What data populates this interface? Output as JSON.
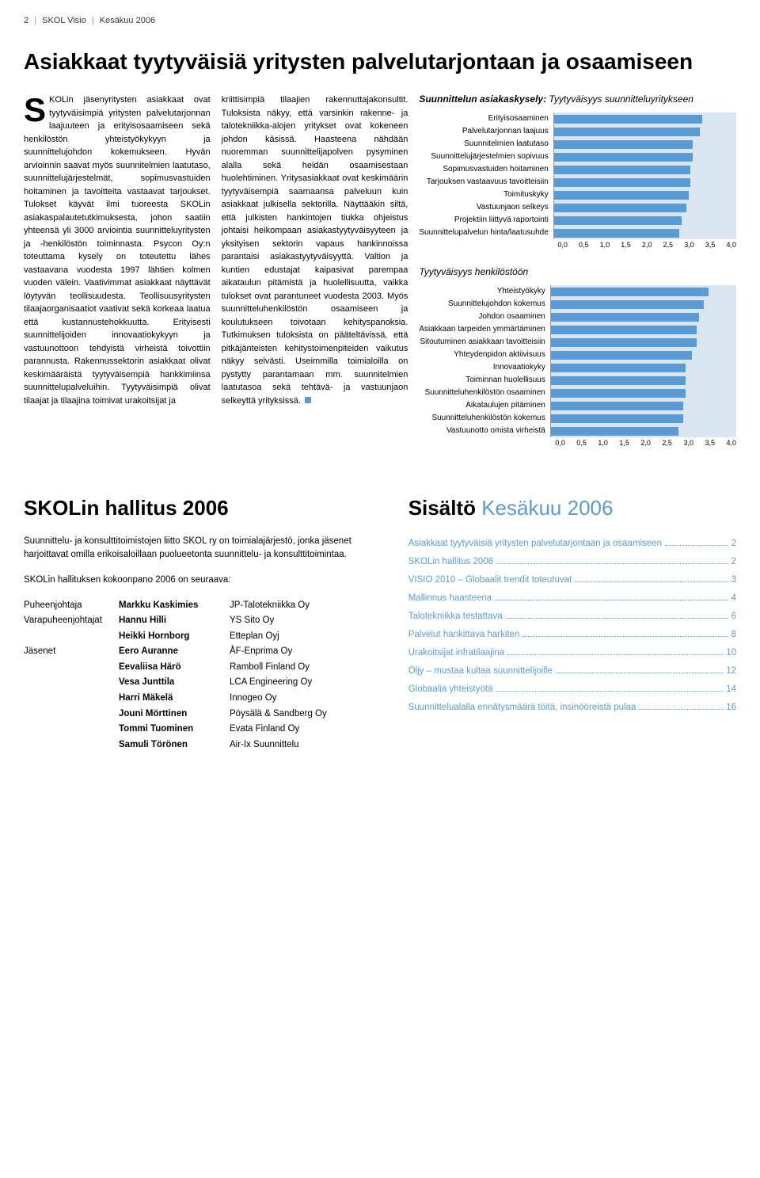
{
  "header": {
    "page_num": "2",
    "mag": "SKOL Visio",
    "issue": "Kesäkuu 2006"
  },
  "article": {
    "title": "Asiakkaat tyytyväisiä yritysten palvelutarjontaan ja osaamiseen",
    "col1": "KOLin jäsenyritysten asiakkaat ovat tyytyväisimpiä yritysten palvelutarjonnan laajuuteen ja erityisosaamiseen sekä henkilöstön yhteistyökykyyn ja suunnittelujohdon kokemukseen. Hyvän arvioinnin saavat myös suunnitelmien laatutaso, suunnittelujärjestelmät, sopimusvastuiden hoitaminen ja tavoitteita vastaavat tarjoukset.\n\nTulokset käyvät ilmi tuoreesta SKOLin asiakaspalautetutkimuksesta, johon saatiin yhteensä yli 3000 arviointia suunnitteluyritysten ja -henkilöstön toiminnasta. Psycon Oy:n toteuttama kysely on toteutettu lähes vastaavana vuodesta 1997 lähtien kolmen vuoden välein.\n\nVaativimmat asiakkaat näyttävät löytyvän teollisuudesta. Teollisuusyritysten tilaajaorganisaatiot vaativat sekä korkeaa laatua että kustannustehokkuutta.\n\nErityisesti suunnittelijoiden innovaatiokykyyn ja vastuunottoon tehdyistä virheistä toivottiin parannusta.\n\nRakennussektorin asiakkaat olivat keskimääräistä tyytyväisempiä hankkimiinsa suunnittelupalveluihin. Tyytyväisimpiä olivat tilaajat ja tilaajina toimivat urakoitsijat ja",
    "col2": "kriittisimpiä tilaajien rakennuttajakonsultit. Tuloksista näkyy, että varsinkin rakenne- ja talotekniikka-alojen yritykset ovat kokeneen johdon käsissä. Haasteena nähdään nuoremman suunnittelijapolven pysyminen alalla sekä heidän osaamisestaan huolehtiminen.\n\nYritysasiakkaat ovat keskimäärin tyytyväisempiä saamaansa palveluun kuin asiakkaat julkisella sektorilla. Näyttääkin siltä, että julkisten hankintojen tiukka ohjeistus johtaisi heikompaan asiakastyytyväisyyteen ja yksityisen sektorin vapaus hankinnoissa parantaisi asiakastyytyväisyyttä.\n\nValtion ja kuntien edustajat kaipasivat parempaa aikataulun pitämistä ja huolellisuutta, vaikka tulokset ovat parantuneet vuodesta 2003. Myös suunnitteluhenkilöstön osaamiseen ja koulutukseen toivotaan kehityspanoksia.\n\nTutkimuksen tuloksista on pääteltävissä, että pitkäjänteisten kehitystoimenpiteiden vaikutus näkyy selvästi. Useimmilla toimialoilla on pystytty parantamaan mm. suunnitelmien laatutasoa sekä tehtävä- ja vastuunjaon selkeyttä yrityksissä."
  },
  "chart1": {
    "title_bold": "Suunnittelun asiakaskysely:",
    "title_ital": "Tyytyväisyys suunnitteluyritykseen",
    "xmax": 4.0,
    "ticks": [
      "0,0",
      "0,5",
      "1,0",
      "1,5",
      "2,0",
      "2,5",
      "3,0",
      "3,5",
      "4,0"
    ],
    "bar_color": "#5b9bd5",
    "bg_color": "#d9e6f2",
    "rows": [
      {
        "label": "Erityisosaaminen",
        "value": 3.25
      },
      {
        "label": "Palvelutarjonnan laajuus",
        "value": 3.2
      },
      {
        "label": "Suunnitelmien laatutaso",
        "value": 3.05
      },
      {
        "label": "Suunnittelujärjestelmien sopivuus",
        "value": 3.05
      },
      {
        "label": "Sopimusvastuiden hoitaminen",
        "value": 3.0
      },
      {
        "label": "Tarjouksen vastaavuus tavoitteisiin",
        "value": 3.0
      },
      {
        "label": "Toimituskyky",
        "value": 2.95
      },
      {
        "label": "Vastuunjaon selkeys",
        "value": 2.9
      },
      {
        "label": "Projektiin liittyvä raportointi",
        "value": 2.8
      },
      {
        "label": "Suunnittelupalvelun hinta/laatusuhde",
        "value": 2.75
      }
    ]
  },
  "chart2": {
    "title_ital": "Tyytyväisyys henkilöstöön",
    "xmax": 4.0,
    "ticks": [
      "0,0",
      "0,5",
      "1,0",
      "1,5",
      "2,0",
      "2,5",
      "3,0",
      "3,5",
      "4,0"
    ],
    "bar_color": "#5b9bd5",
    "bg_color": "#d9e6f2",
    "rows": [
      {
        "label": "Yhteistyökyky",
        "value": 3.4
      },
      {
        "label": "Suunnittelujohdon kokemus",
        "value": 3.3
      },
      {
        "label": "Johdon osaaminen",
        "value": 3.2
      },
      {
        "label": "Asiakkaan tarpeiden ymmärtäminen",
        "value": 3.15
      },
      {
        "label": "Sitoutuminen asiakkaan tavoitteisiin",
        "value": 3.15
      },
      {
        "label": "Yhteydenpidon aktiivisuus",
        "value": 3.05
      },
      {
        "label": "Innovaatiokyky",
        "value": 2.9
      },
      {
        "label": "Toiminnan huolellisuus",
        "value": 2.9
      },
      {
        "label": "Suunnitteluhenkilöstön osaaminen",
        "value": 2.9
      },
      {
        "label": "Aikataulujen pitäminen",
        "value": 2.85
      },
      {
        "label": "Suunnitteluhenkilöstön kokemus",
        "value": 2.85
      },
      {
        "label": "Vastuunotto omista virheistä",
        "value": 2.75
      }
    ]
  },
  "board": {
    "title": "SKOLin hallitus 2006",
    "intro": "Suunnittelu- ja konsulttitoimistojen liitto SKOL ry on toimialajärjestö, jonka jäsenet harjoittavat omilla erikoisaloillaan puolueetonta suunnittelu- ja konsulttitoimintaa.",
    "sub": "SKOLin hallituksen kokoonpano 2006 on seuraava:",
    "rows": [
      {
        "role": "Puheenjohtaja",
        "name": "Markku Kaskimies",
        "org": "JP-Talotekniikka Oy"
      },
      {
        "role": "Varapuheenjohtajat",
        "name": "Hannu Hilli",
        "org": "YS Sito Oy"
      },
      {
        "role": "",
        "name": "Heikki Hornborg",
        "org": "Etteplan Oyj"
      },
      {
        "role": "Jäsenet",
        "name": "Eero Auranne",
        "org": "ÅF-Enprima Oy"
      },
      {
        "role": "",
        "name": "Eevaliisa Härö",
        "org": "Ramboll Finland Oy"
      },
      {
        "role": "",
        "name": "Vesa Junttila",
        "org": "LCA Engineering Oy"
      },
      {
        "role": "",
        "name": "Harri Mäkelä",
        "org": "Innogeo Oy"
      },
      {
        "role": "",
        "name": "Jouni Mörttinen",
        "org": "Pöysälä & Sandberg Oy"
      },
      {
        "role": "",
        "name": "Tommi Tuominen",
        "org": "Evata Finland Oy"
      },
      {
        "role": "",
        "name": "Samuli Törönen",
        "org": "Air-Ix Suunnittelu"
      }
    ]
  },
  "toc": {
    "title_a": "Sisältö",
    "title_b": "Kesäkuu 2006",
    "rows": [
      {
        "label": "Asiakkaat tyytyväisiä yritysten palvelutarjontaan ja osaamiseen",
        "page": "2"
      },
      {
        "label": "SKOLin hallitus 2006",
        "page": "2"
      },
      {
        "label": "VISIO 2010 – Globaalit trendit toteutuvat",
        "page": "3"
      },
      {
        "label": "Mallinnus haasteena",
        "page": "4"
      },
      {
        "label": "Talotekniikka testattava",
        "page": "6"
      },
      {
        "label": "Palvelut hankittava harkiten",
        "page": "8"
      },
      {
        "label": "Urakoitsijat infratilaajina",
        "page": "10"
      },
      {
        "label": "Öljy – mustaa kultaa suunnittelijoille",
        "page": "12"
      },
      {
        "label": "Globaalia yhteistyötä",
        "page": "14"
      },
      {
        "label": "Suunnittelualalla ennätysmäärä töitä, insinööreistä pulaa",
        "page": "16"
      }
    ]
  }
}
